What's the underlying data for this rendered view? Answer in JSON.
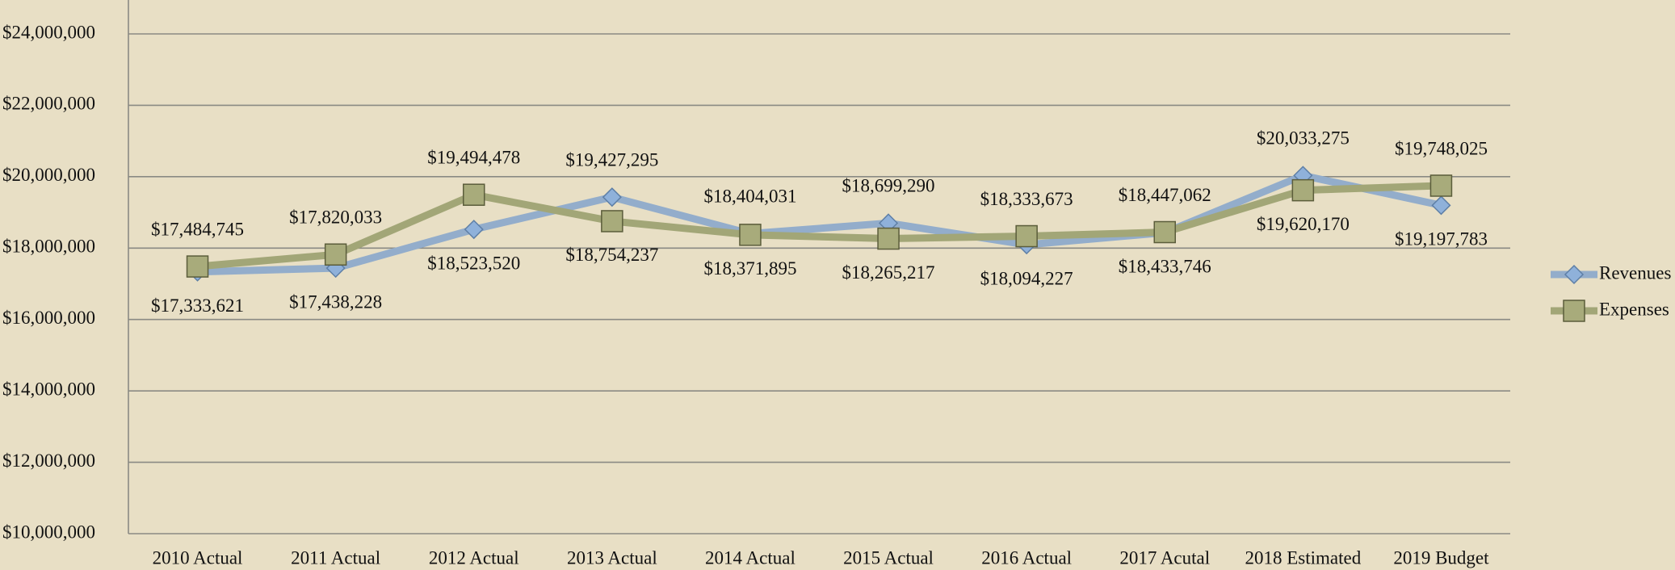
{
  "chart_data": {
    "type": "line",
    "categories": [
      "2010 Actual",
      "2011 Actual",
      "2012 Actual",
      "2013 Actual",
      "2014 Actual",
      "2015 Actual",
      "2016 Actual",
      "2017 Acutal",
      "2018 Estimated",
      "2019 Budget"
    ],
    "series": [
      {
        "name": "Revenues",
        "color": "#93adcb",
        "marker": "diamond",
        "values": [
          17333621,
          17438228,
          18523520,
          19427295,
          18404031,
          18699290,
          18094227,
          18433746,
          20033275,
          19197783
        ],
        "value_labels": [
          "$17,333,621",
          "$17,438,228",
          "$18,523,520",
          "$19,427,295",
          "$18,404,031",
          "$18,699,290",
          "$18,094,227",
          "$18,433,746",
          "$20,033,275",
          "$19,197,783"
        ]
      },
      {
        "name": "Expenses",
        "color": "#a2a677",
        "marker": "square",
        "values": [
          17484745,
          17820033,
          19494478,
          18754237,
          18371895,
          18265217,
          18333673,
          18447062,
          19620170,
          19748025
        ],
        "value_labels": [
          "$17,484,745",
          "$17,820,033",
          "$19,494,478",
          "$18,754,237",
          "$18,371,895",
          "$18,265,217",
          "$18,333,673",
          "$18,447,062",
          "$19,620,170",
          "$19,748,025"
        ]
      }
    ],
    "ylim": [
      10000000,
      24000000
    ],
    "yticks": [
      {
        "value": 10000000,
        "label": "$10,000,000"
      },
      {
        "value": 12000000,
        "label": "$12,000,000"
      },
      {
        "value": 14000000,
        "label": "$14,000,000"
      },
      {
        "value": 16000000,
        "label": "$16,000,000"
      },
      {
        "value": 18000000,
        "label": "$18,000,000"
      },
      {
        "value": 20000000,
        "label": "$20,000,000"
      },
      {
        "value": 22000000,
        "label": "$22,000,000"
      },
      {
        "value": 24000000,
        "label": "$24,000,000"
      }
    ],
    "grid": true,
    "legend": "right"
  }
}
